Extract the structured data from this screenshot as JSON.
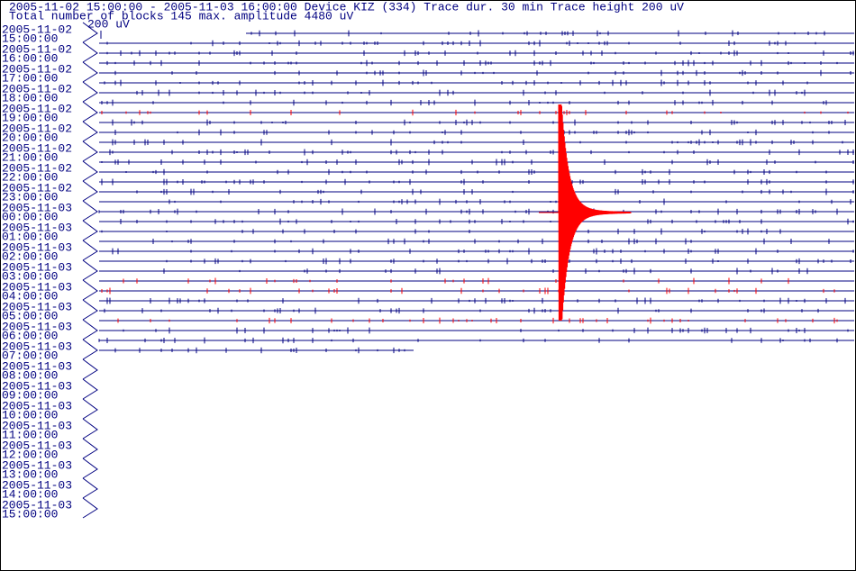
{
  "header": {
    "line1": "2005-11-02 15:00:00 - 2005-11-03 16:00:00  Device  KIZ (334)  Trace dur. 30 min  Trace height 200 uV",
    "line2": "Total number of blocks 145 max. amplitude 4480 uV",
    "scale_label": "200 uV"
  },
  "rows": [
    {
      "date": "2005-11-02",
      "time": "15:00:00"
    },
    {
      "date": "2005-11-02",
      "time": "16:00:00"
    },
    {
      "date": "2005-11-02",
      "time": "17:00:00"
    },
    {
      "date": "2005-11-02",
      "time": "18:00:00"
    },
    {
      "date": "2005-11-02",
      "time": "19:00:00"
    },
    {
      "date": "2005-11-02",
      "time": "20:00:00"
    },
    {
      "date": "2005-11-02",
      "time": "21:00:00"
    },
    {
      "date": "2005-11-02",
      "time": "22:00:00"
    },
    {
      "date": "2005-11-02",
      "time": "23:00:00"
    },
    {
      "date": "2005-11-03",
      "time": "00:00:00"
    },
    {
      "date": "2005-11-03",
      "time": "01:00:00"
    },
    {
      "date": "2005-11-03",
      "time": "02:00:00"
    },
    {
      "date": "2005-11-03",
      "time": "03:00:00"
    },
    {
      "date": "2005-11-03",
      "time": "04:00:00"
    },
    {
      "date": "2005-11-03",
      "time": "05:00:00"
    },
    {
      "date": "2005-11-03",
      "time": "06:00:00"
    },
    {
      "date": "2005-11-03",
      "time": "07:00:00"
    },
    {
      "date": "2005-11-03",
      "time": "08:00:00"
    },
    {
      "date": "2005-11-03",
      "time": "09:00:00"
    },
    {
      "date": "2005-11-03",
      "time": "10:00:00"
    },
    {
      "date": "2005-11-03",
      "time": "11:00:00"
    },
    {
      "date": "2005-11-03",
      "time": "12:00:00"
    },
    {
      "date": "2005-11-03",
      "time": "13:00:00"
    },
    {
      "date": "2005-11-03",
      "time": "14:00:00"
    },
    {
      "date": "2005-11-03",
      "time": "15:00:00"
    }
  ]
}
